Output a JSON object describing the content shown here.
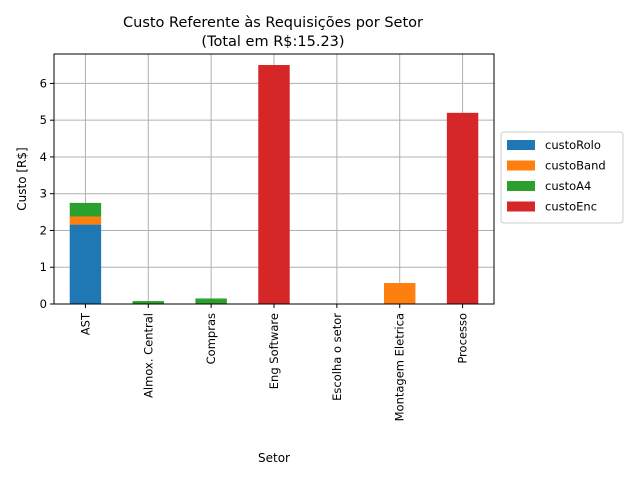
{
  "chart_data": {
    "type": "bar",
    "stacked": true,
    "title": "Custo Referente às Requisições por Setor",
    "subtitle": "(Total em R$:15.23)",
    "xlabel": "Setor",
    "ylabel": "Custo [R$]",
    "ylim": [
      0,
      6.8
    ],
    "yticks": [
      "0",
      "1",
      "2",
      "3",
      "4",
      "5",
      "6"
    ],
    "grid": true,
    "legend_position": "center-right",
    "categories": [
      "AST",
      "Almox. Central",
      "Compras",
      "Eng Software",
      "Escolha o setor",
      "Montagem Eletrica",
      "Processo"
    ],
    "series": [
      {
        "name": "custoRolo",
        "color": "#1f77b4",
        "values": [
          2.16,
          0,
          0,
          0,
          0,
          0,
          0
        ]
      },
      {
        "name": "custoBand",
        "color": "#ff7f0e",
        "values": [
          0.22,
          0,
          0,
          0,
          0,
          0.57,
          0
        ]
      },
      {
        "name": "custoA4",
        "color": "#2ca02c",
        "values": [
          0.37,
          0.08,
          0.15,
          0,
          0,
          0,
          0
        ]
      },
      {
        "name": "custoEnc",
        "color": "#d62728",
        "values": [
          0,
          0,
          0,
          6.5,
          0,
          0,
          5.2
        ]
      }
    ]
  }
}
